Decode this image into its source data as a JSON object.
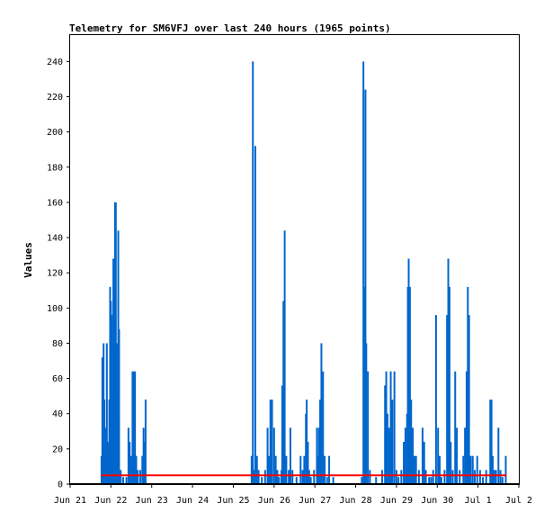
{
  "chart_data": {
    "type": "bar",
    "title": "Telemetry for SM6VFJ over last 240 hours (1965 points)",
    "xlabel": "",
    "ylabel": "Values",
    "ylim": [
      0,
      255
    ],
    "xlim_days": [
      21,
      32
    ],
    "yticks": [
      0,
      20,
      40,
      60,
      80,
      100,
      120,
      140,
      160,
      180,
      200,
      220,
      240
    ],
    "xticks": [
      {
        "day": 21,
        "label": "Jun 21"
      },
      {
        "day": 22,
        "label": "Jun 22"
      },
      {
        "day": 23,
        "label": "Jun 23"
      },
      {
        "day": 24,
        "label": "Jun 24"
      },
      {
        "day": 25,
        "label": "Jun 25"
      },
      {
        "day": 26,
        "label": "Jun 26"
      },
      {
        "day": 27,
        "label": "Jun 27"
      },
      {
        "day": 28,
        "label": "Jun 28"
      },
      {
        "day": 29,
        "label": "Jun 29"
      },
      {
        "day": 30,
        "label": "Jun 30"
      },
      {
        "day": 31,
        "label": "Jul 1"
      },
      {
        "day": 32,
        "label": "Jul 2"
      }
    ],
    "grid": false,
    "colors": {
      "series": "#0066cc",
      "reference": "#ff0000",
      "zero": "#000000"
    },
    "reference_line": {
      "y": 5,
      "x_start_day": 21.76,
      "x_end_day": 31.7
    },
    "series_points": [
      [
        21.74,
        0
      ],
      [
        21.77,
        16
      ],
      [
        21.79,
        72
      ],
      [
        21.8,
        48
      ],
      [
        21.82,
        80
      ],
      [
        21.84,
        48
      ],
      [
        21.86,
        32
      ],
      [
        21.9,
        80
      ],
      [
        21.92,
        24
      ],
      [
        21.94,
        16
      ],
      [
        21.96,
        48
      ],
      [
        21.98,
        112
      ],
      [
        22.0,
        104
      ],
      [
        22.02,
        96
      ],
      [
        22.04,
        48
      ],
      [
        22.06,
        128
      ],
      [
        22.08,
        80
      ],
      [
        22.1,
        160
      ],
      [
        22.12,
        160
      ],
      [
        22.14,
        80
      ],
      [
        22.16,
        40
      ],
      [
        22.18,
        144
      ],
      [
        22.2,
        88
      ],
      [
        22.24,
        8
      ],
      [
        22.3,
        4
      ],
      [
        22.38,
        4
      ],
      [
        22.43,
        32
      ],
      [
        22.46,
        24
      ],
      [
        22.5,
        16
      ],
      [
        22.53,
        64
      ],
      [
        22.56,
        64
      ],
      [
        22.59,
        64
      ],
      [
        22.62,
        16
      ],
      [
        22.66,
        8
      ],
      [
        22.72,
        8
      ],
      [
        22.77,
        16
      ],
      [
        22.8,
        32
      ],
      [
        22.83,
        24
      ],
      [
        22.85,
        48
      ],
      [
        22.9,
        0
      ],
      [
        25.45,
        16
      ],
      [
        25.48,
        240
      ],
      [
        25.52,
        8
      ],
      [
        25.54,
        192
      ],
      [
        25.58,
        16
      ],
      [
        25.62,
        8
      ],
      [
        25.7,
        4
      ],
      [
        25.78,
        8
      ],
      [
        25.84,
        32
      ],
      [
        25.88,
        16
      ],
      [
        25.91,
        48
      ],
      [
        25.95,
        48
      ],
      [
        26.0,
        32
      ],
      [
        26.04,
        16
      ],
      [
        26.08,
        8
      ],
      [
        26.12,
        4
      ],
      [
        26.18,
        8
      ],
      [
        26.2,
        56
      ],
      [
        26.23,
        104
      ],
      [
        26.26,
        144
      ],
      [
        26.3,
        16
      ],
      [
        26.36,
        8
      ],
      [
        26.4,
        32
      ],
      [
        26.45,
        8
      ],
      [
        26.55,
        4
      ],
      [
        26.65,
        16
      ],
      [
        26.7,
        8
      ],
      [
        26.74,
        16
      ],
      [
        26.78,
        40
      ],
      [
        26.8,
        48
      ],
      [
        26.83,
        24
      ],
      [
        26.86,
        8
      ],
      [
        26.9,
        4
      ],
      [
        26.98,
        8
      ],
      [
        27.05,
        32
      ],
      [
        27.08,
        16
      ],
      [
        27.1,
        32
      ],
      [
        27.13,
        48
      ],
      [
        27.16,
        80
      ],
      [
        27.2,
        64
      ],
      [
        27.24,
        16
      ],
      [
        27.3,
        4
      ],
      [
        27.35,
        16
      ],
      [
        27.45,
        4
      ],
      [
        28.15,
        4
      ],
      [
        28.19,
        240
      ],
      [
        28.21,
        112
      ],
      [
        28.24,
        224
      ],
      [
        28.26,
        80
      ],
      [
        28.3,
        64
      ],
      [
        28.35,
        8
      ],
      [
        28.5,
        4
      ],
      [
        28.65,
        8
      ],
      [
        28.72,
        56
      ],
      [
        28.75,
        64
      ],
      [
        28.78,
        40
      ],
      [
        28.82,
        32
      ],
      [
        28.86,
        64
      ],
      [
        28.9,
        48
      ],
      [
        28.95,
        64
      ],
      [
        29.0,
        8
      ],
      [
        29.05,
        4
      ],
      [
        29.12,
        8
      ],
      [
        29.18,
        24
      ],
      [
        29.22,
        32
      ],
      [
        29.26,
        40
      ],
      [
        29.28,
        112
      ],
      [
        29.3,
        128
      ],
      [
        29.33,
        112
      ],
      [
        29.36,
        48
      ],
      [
        29.4,
        32
      ],
      [
        29.44,
        16
      ],
      [
        29.48,
        16
      ],
      [
        29.55,
        8
      ],
      [
        29.64,
        32
      ],
      [
        29.68,
        24
      ],
      [
        29.72,
        8
      ],
      [
        29.8,
        4
      ],
      [
        29.85,
        4
      ],
      [
        29.9,
        8
      ],
      [
        29.97,
        96
      ],
      [
        30.02,
        32
      ],
      [
        30.06,
        16
      ],
      [
        30.1,
        4
      ],
      [
        30.18,
        8
      ],
      [
        30.24,
        96
      ],
      [
        30.27,
        128
      ],
      [
        30.3,
        112
      ],
      [
        30.33,
        24
      ],
      [
        30.38,
        8
      ],
      [
        30.44,
        64
      ],
      [
        30.48,
        32
      ],
      [
        30.55,
        8
      ],
      [
        30.64,
        16
      ],
      [
        30.68,
        32
      ],
      [
        30.72,
        64
      ],
      [
        30.75,
        112
      ],
      [
        30.78,
        96
      ],
      [
        30.82,
        16
      ],
      [
        30.87,
        16
      ],
      [
        30.92,
        8
      ],
      [
        30.98,
        16
      ],
      [
        31.05,
        8
      ],
      [
        31.12,
        4
      ],
      [
        31.2,
        8
      ],
      [
        31.3,
        48
      ],
      [
        31.33,
        48
      ],
      [
        31.36,
        16
      ],
      [
        31.4,
        8
      ],
      [
        31.44,
        8
      ],
      [
        31.5,
        32
      ],
      [
        31.55,
        8
      ],
      [
        31.6,
        4
      ],
      [
        31.68,
        16
      ],
      [
        31.72,
        0
      ]
    ]
  }
}
